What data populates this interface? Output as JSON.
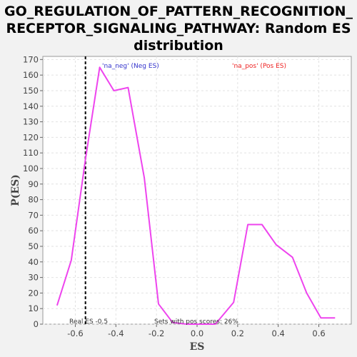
{
  "chart_data": {
    "type": "line",
    "title_lines": [
      "GO_REGULATION_OF_PATTERN_RECOGNITION_",
      "RECEPTOR_SIGNALING_PATHWAY: Random ES",
      "distribution"
    ],
    "xlabel": "ES",
    "ylabel": "P(ES)",
    "xlim": [
      -0.76,
      0.76
    ],
    "ylim": [
      0,
      172
    ],
    "xticks": [
      -0.6,
      -0.4,
      -0.2,
      0.0,
      0.2,
      0.4,
      0.6
    ],
    "xtick_labels": [
      "-0.6",
      "-0.4",
      "-0.2",
      "0.0",
      "0.2",
      "0.4",
      "0.6"
    ],
    "yticks": [
      0,
      10,
      20,
      30,
      40,
      50,
      60,
      70,
      80,
      90,
      100,
      110,
      120,
      130,
      140,
      150,
      160,
      170
    ],
    "ytick_labels": [
      "0",
      "10",
      "20",
      "30",
      "40",
      "50",
      "60",
      "70",
      "80",
      "90",
      "100",
      "110",
      "120",
      "130",
      "140",
      "150",
      "160",
      "170"
    ],
    "grid": true,
    "series_color": "#ee44ee",
    "series": [
      {
        "x": [
          -0.69,
          -0.62,
          -0.55,
          -0.48,
          -0.41,
          -0.34,
          -0.26,
          -0.19,
          -0.12,
          -0.05,
          0.02,
          0.09,
          0.18,
          0.25,
          0.32,
          0.39,
          0.47,
          0.54,
          0.61,
          0.68
        ],
        "y": [
          12,
          41,
          106,
          165,
          150,
          152,
          94,
          13,
          1,
          0,
          0,
          0,
          14,
          64,
          64,
          51,
          43,
          20,
          4,
          4
        ]
      }
    ],
    "real_es": -0.55,
    "annotations": {
      "neg_label": "'na_neg' (Neg ES)",
      "pos_label": "'na_pos' (Pos ES)",
      "real_es_label": "Real ES -0.5",
      "pos_scores_label": "Sets with pos scores: 26%"
    },
    "colors": {
      "neg": "#3333cc",
      "pos": "#ee2222",
      "real_es_line": "#000000"
    }
  }
}
